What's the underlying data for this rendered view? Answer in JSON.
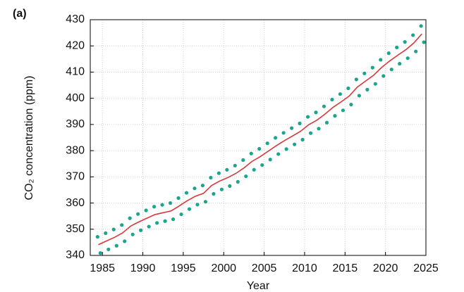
{
  "chart_data": {
    "type": "line",
    "panel_label": "(a)",
    "xlabel": "Year",
    "ylabel": "CO₂ concentration (ppm)",
    "xlim": [
      1983.5,
      2025
    ],
    "ylim": [
      340,
      430
    ],
    "xticks": [
      1985,
      1990,
      1995,
      2000,
      2005,
      2010,
      2015,
      2020,
      2025
    ],
    "yticks": [
      340,
      350,
      360,
      370,
      380,
      390,
      400,
      410,
      420,
      430
    ],
    "grid": true,
    "series": [
      {
        "color": "#1aa58c",
        "style": "dots",
        "x": [
          1984.4,
          1984.75,
          1985.4,
          1985.75,
          1986.4,
          1986.75,
          1987.4,
          1987.75,
          1988.4,
          1988.75,
          1989.4,
          1989.75,
          1990.4,
          1990.75,
          1991.4,
          1991.75,
          1992.4,
          1992.75,
          1993.4,
          1993.75,
          1994.4,
          1994.75,
          1995.4,
          1995.75,
          1996.4,
          1996.75,
          1997.4,
          1997.75,
          1998.4,
          1998.75,
          1999.4,
          1999.75,
          2000.4,
          2000.75,
          2001.4,
          2001.75,
          2002.4,
          2002.75,
          2003.4,
          2003.75,
          2004.4,
          2004.75,
          2005.4,
          2005.75,
          2006.4,
          2006.75,
          2007.4,
          2007.75,
          2008.4,
          2008.75,
          2009.4,
          2009.75,
          2010.4,
          2010.75,
          2011.4,
          2011.75,
          2012.4,
          2012.75,
          2013.4,
          2013.75,
          2014.4,
          2014.75,
          2015.4,
          2015.75,
          2016.4,
          2016.75,
          2017.4,
          2017.75,
          2018.4,
          2018.75,
          2019.4,
          2019.75,
          2020.4,
          2020.75,
          2021.4,
          2021.75,
          2022.4,
          2022.75,
          2023.4,
          2023.75,
          2024.4,
          2024.75
        ],
        "values": [
          347.1,
          340.9,
          348.5,
          342.3,
          349.9,
          343.7,
          351.6,
          345.4,
          354.2,
          348.0,
          355.8,
          349.6,
          357.2,
          351.0,
          358.6,
          352.4,
          359.3,
          353.1,
          360.0,
          353.8,
          361.9,
          355.7,
          363.9,
          357.7,
          365.6,
          359.4,
          366.7,
          360.5,
          369.7,
          363.5,
          371.4,
          365.2,
          372.7,
          366.5,
          374.3,
          368.1,
          376.4,
          370.2,
          378.9,
          372.7,
          380.7,
          374.5,
          382.8,
          376.6,
          384.9,
          378.7,
          386.8,
          380.6,
          388.6,
          382.4,
          390.4,
          384.2,
          392.9,
          386.7,
          394.6,
          388.4,
          396.9,
          390.7,
          399.5,
          393.3,
          401.6,
          395.4,
          403.8,
          397.6,
          407.2,
          401.0,
          409.5,
          403.3,
          411.7,
          405.5,
          414.7,
          408.5,
          417.2,
          411.0,
          419.4,
          413.2,
          421.5,
          415.3,
          424.1,
          417.9,
          427.6,
          421.4
        ]
      },
      {
        "color": "#d9383a",
        "style": "line",
        "x": [
          1984.5,
          1985.5,
          1986.5,
          1987.5,
          1988.5,
          1989.5,
          1990.5,
          1991.5,
          1992.5,
          1993.5,
          1994.5,
          1995.5,
          1996.5,
          1997.5,
          1998.5,
          1999.5,
          2000.5,
          2001.5,
          2002.5,
          2003.5,
          2004.5,
          2005.5,
          2006.5,
          2007.5,
          2008.5,
          2009.5,
          2010.5,
          2011.5,
          2012.5,
          2013.5,
          2014.5,
          2015.5,
          2016.5,
          2017.5,
          2018.5,
          2019.5,
          2020.5,
          2021.5,
          2022.5,
          2023.5,
          2024.5
        ],
        "values": [
          344.1,
          345.5,
          346.9,
          348.6,
          351.2,
          352.8,
          354.2,
          355.6,
          356.3,
          357.0,
          358.9,
          360.9,
          362.6,
          363.7,
          366.7,
          368.4,
          369.7,
          371.3,
          373.4,
          375.9,
          377.7,
          379.8,
          381.9,
          383.8,
          385.6,
          387.4,
          389.9,
          391.6,
          393.9,
          396.5,
          398.6,
          400.8,
          404.2,
          406.5,
          408.7,
          411.7,
          414.2,
          416.4,
          418.5,
          421.1,
          424.6
        ]
      }
    ]
  }
}
